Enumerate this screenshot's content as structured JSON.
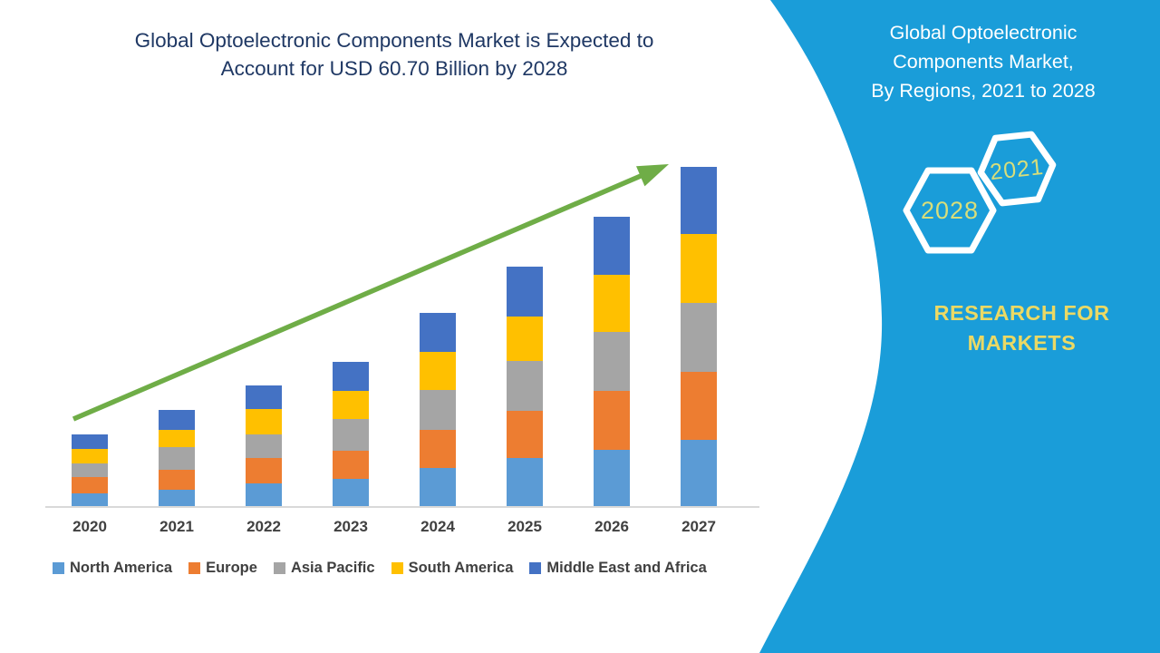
{
  "chart": {
    "title_lines": [
      "Global Optoelectronic Components Market is Expected to",
      "Account for USD 60.70 Billion by 2028"
    ]
  },
  "chart_data": {
    "type": "bar",
    "stacked": true,
    "title": "Global Optoelectronic Components Market is Expected to Account for USD 60.70 Billion by 2028",
    "xlabel": "",
    "ylabel": "",
    "axis_visible": {
      "x": true,
      "y": false
    },
    "grid": false,
    "legend_position": "bottom",
    "categories": [
      "2020",
      "2021",
      "2022",
      "2023",
      "2024",
      "2025",
      "2026",
      "2027"
    ],
    "series": [
      {
        "name": "North America",
        "color": "#5B9BD5",
        "values": [
          2.2,
          2.7,
          3.7,
          4.5,
          6.1,
          7.7,
          9.0,
          10.6
        ]
      },
      {
        "name": "Europe",
        "color": "#ED7D31",
        "values": [
          2.5,
          3.2,
          4.0,
          4.4,
          6.1,
          7.4,
          9.3,
          10.7
        ]
      },
      {
        "name": "Asia Pacific",
        "color": "#A5A5A5",
        "values": [
          2.2,
          3.6,
          3.8,
          4.9,
          6.2,
          7.9,
          9.3,
          10.9
        ]
      },
      {
        "name": "South America",
        "color": "#FFC000",
        "values": [
          2.2,
          2.6,
          4.0,
          4.5,
          6.1,
          7.0,
          9.0,
          10.8
        ]
      },
      {
        "name": "Middle East and Africa",
        "color": "#4472C4",
        "values": [
          2.3,
          3.2,
          3.7,
          4.6,
          6.1,
          7.9,
          9.1,
          10.6
        ]
      }
    ],
    "totals_estimated": [
      11.4,
      15.3,
      19.2,
      22.9,
      30.6,
      37.9,
      45.7,
      53.6
    ],
    "annotations": [
      {
        "type": "trend-arrow",
        "from_category": "2020",
        "to_category": "2027",
        "direction": "up"
      }
    ]
  },
  "panel": {
    "title_lines": [
      "Global Optoelectronic",
      "Components Market,",
      "By Regions, 2021 to 2028"
    ],
    "hexagons": [
      {
        "label": "2028"
      },
      {
        "label": "2021"
      }
    ],
    "brand_lines": [
      "RESEARCH FOR",
      "MARKETS"
    ]
  },
  "colors": {
    "teal": "#1A9DD9",
    "navy": "#1F3864",
    "arrow": "#6FAD47",
    "axis_line": "#D9D9D9",
    "tick_label": "#404040",
    "hex_text": "#D9DE7A",
    "brand": "#EBD964"
  }
}
